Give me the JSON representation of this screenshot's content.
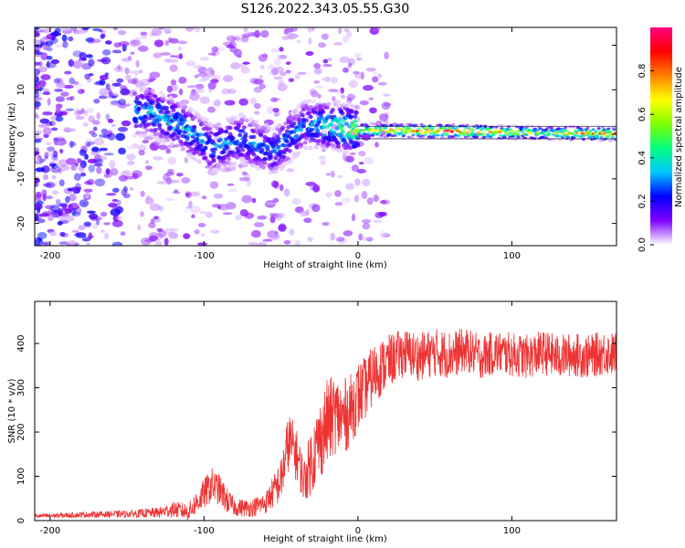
{
  "title": "S126.2022.343.05.55.G30",
  "chart_data": [
    {
      "type": "heatmap",
      "xlabel": "Height of straight line (km)",
      "ylabel": "Frequency (Hz)",
      "xlim": [
        -210,
        168
      ],
      "ylim": [
        -25,
        24
      ],
      "x_ticks": [
        -200,
        -100,
        0,
        100
      ],
      "y_ticks": [
        20,
        10,
        0,
        -10,
        -20
      ],
      "x_tick_labels": [
        "-200",
        "-100",
        "0",
        "100"
      ],
      "y_tick_labels": [
        "20",
        "10",
        "0",
        "-10",
        "-20"
      ],
      "colorbar": {
        "label": "Normalized spectral amplitude",
        "range": [
          0,
          1
        ],
        "ticks": [
          0.0,
          0.2,
          0.4,
          0.6,
          0.8
        ],
        "tick_labels": [
          "0.0",
          "0.2",
          "0.4",
          "0.6",
          "0.8"
        ],
        "colormap": [
          "#ffffff",
          "#8000ff",
          "#0000ff",
          "#00c8ff",
          "#00ff80",
          "#80ff00",
          "#ffff00",
          "#ff8000",
          "#ff0000",
          "#ff0080"
        ]
      },
      "ridge": [
        {
          "x": -135,
          "y": 5,
          "amp": 0.35
        },
        {
          "x": -115,
          "y": 2,
          "amp": 0.38
        },
        {
          "x": -95,
          "y": -3,
          "amp": 0.32
        },
        {
          "x": -75,
          "y": -1,
          "amp": 0.3
        },
        {
          "x": -55,
          "y": -4,
          "amp": 0.3
        },
        {
          "x": -35,
          "y": 2,
          "amp": 0.3
        },
        {
          "x": -20,
          "y": 2,
          "amp": 0.42
        },
        {
          "x": 0,
          "y": 1,
          "amp": 0.6
        },
        {
          "x": 40,
          "y": 0.8,
          "amp": 0.9
        },
        {
          "x": 80,
          "y": 0.6,
          "amp": 0.85
        },
        {
          "x": 120,
          "y": 0.3,
          "amp": 0.55
        },
        {
          "x": 160,
          "y": 0.1,
          "amp": 0.85
        }
      ]
    },
    {
      "type": "line",
      "xlabel": "Height of straight line (km)",
      "ylabel": "SNR (10 * v/v)",
      "xlim": [
        -210,
        168
      ],
      "ylim": [
        0,
        495
      ],
      "x_ticks": [
        -200,
        -100,
        0,
        100
      ],
      "y_ticks": [
        0,
        100,
        200,
        300,
        400
      ],
      "x_tick_labels": [
        "-200",
        "-100",
        "0",
        "100"
      ],
      "y_tick_labels": [
        "0",
        "100",
        "200",
        "300",
        "400"
      ],
      "series": [
        {
          "color": "#ee3333",
          "x": [
            -210,
            -190,
            -170,
            -150,
            -130,
            -120,
            -110,
            -100,
            -95,
            -90,
            -85,
            -80,
            -70,
            -60,
            -50,
            -45,
            -40,
            -35,
            -30,
            -25,
            -20,
            -15,
            -10,
            -5,
            0,
            5,
            10,
            20,
            30,
            40,
            50,
            60,
            70,
            80,
            90,
            100,
            110,
            120,
            130,
            140,
            150,
            160,
            168
          ],
          "y": [
            10,
            12,
            14,
            15,
            18,
            25,
            20,
            60,
            80,
            70,
            45,
            30,
            28,
            40,
            90,
            180,
            150,
            90,
            140,
            180,
            220,
            240,
            230,
            250,
            280,
            300,
            330,
            360,
            380,
            370,
            380,
            375,
            385,
            370,
            380,
            375,
            370,
            380,
            370,
            375,
            370,
            380,
            375
          ],
          "spread": [
            5,
            6,
            7,
            8,
            12,
            18,
            20,
            35,
            40,
            35,
            30,
            20,
            20,
            25,
            50,
            70,
            60,
            50,
            80,
            90,
            100,
            90,
            90,
            80,
            80,
            70,
            70,
            60,
            55,
            55,
            55,
            55,
            50,
            50,
            50,
            50,
            50,
            50,
            50,
            50,
            50,
            50,
            50
          ]
        }
      ]
    }
  ]
}
